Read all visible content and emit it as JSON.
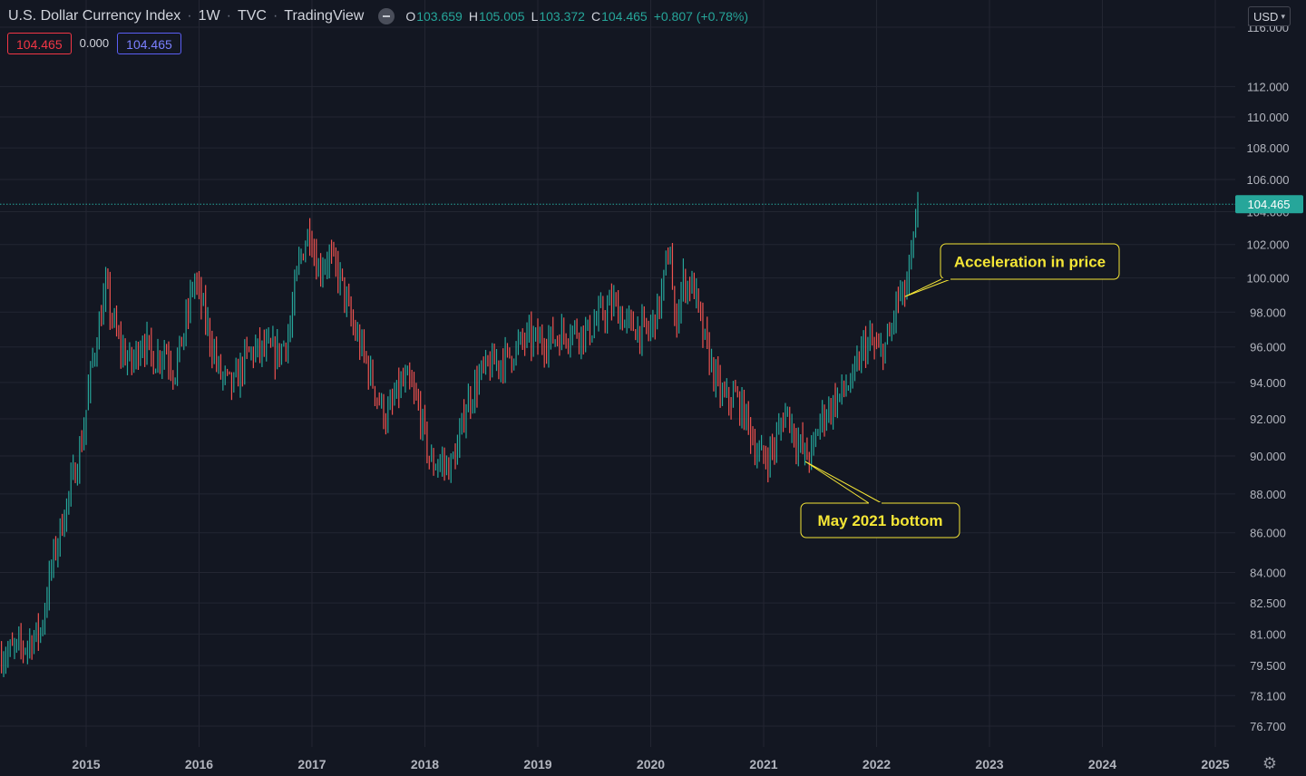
{
  "header": {
    "symbol_title": "U.S. Dollar Currency Index",
    "interval": "1W",
    "exchange": "TVC",
    "source": "TradingView",
    "ohlc": {
      "o_label": "O",
      "o_value": "103.659",
      "h_label": "H",
      "h_value": "105.005",
      "l_label": "L",
      "l_value": "103.372",
      "c_label": "C",
      "c_value": "104.465",
      "change": "+0.807 (+0.78%)"
    }
  },
  "indicator_boxes": {
    "bid": "104.465",
    "spread": "0.000",
    "ask": "104.465"
  },
  "currency_button": {
    "label": "USD"
  },
  "colors": {
    "background": "#131722",
    "up": "#26a69a",
    "down": "#ef5350",
    "grid": "#232632",
    "annotation_fill": "#131722",
    "annotation_border": "#f5e636",
    "annotation_text": "#f5e636",
    "last_price_line": "#26a69a"
  },
  "chart_data": {
    "type": "candlestick",
    "title": "U.S. Dollar Currency Index",
    "interval": "1W",
    "y_scale": "log",
    "ylim": [
      75.8,
      117.0
    ],
    "xlim": [
      2014.25,
      2025.4
    ],
    "grid": true,
    "y_ticks": [
      "76.700",
      "78.100",
      "79.500",
      "81.000",
      "82.500",
      "84.000",
      "86.000",
      "88.000",
      "90.000",
      "92.000",
      "94.000",
      "96.000",
      "98.000",
      "100.000",
      "102.000",
      "104.000",
      "106.000",
      "108.000",
      "110.000",
      "112.000",
      "116.000"
    ],
    "x_ticks": [
      "2015",
      "2016",
      "2017",
      "2018",
      "2019",
      "2020",
      "2021",
      "2022",
      "2023",
      "2024",
      "2025"
    ],
    "last_price": 104.465,
    "last_price_label": "104.465",
    "series_path": [
      [
        2014.25,
        80.0
      ],
      [
        2014.45,
        80.4
      ],
      [
        2014.6,
        81.2
      ],
      [
        2014.7,
        84.5
      ],
      [
        2014.85,
        88.0
      ],
      [
        2014.97,
        91.0
      ],
      [
        2015.05,
        95.0
      ],
      [
        2015.18,
        99.5
      ],
      [
        2015.22,
        97.8
      ],
      [
        2015.3,
        96.0
      ],
      [
        2015.4,
        95.0
      ],
      [
        2015.5,
        96.5
      ],
      [
        2015.6,
        95.2
      ],
      [
        2015.7,
        96.0
      ],
      [
        2015.78,
        94.5
      ],
      [
        2015.9,
        97.8
      ],
      [
        2015.95,
        100.0
      ],
      [
        2016.0,
        99.0
      ],
      [
        2016.08,
        97.0
      ],
      [
        2016.18,
        94.5
      ],
      [
        2016.3,
        93.7
      ],
      [
        2016.42,
        95.5
      ],
      [
        2016.5,
        95.8
      ],
      [
        2016.58,
        95.8
      ],
      [
        2016.7,
        95.6
      ],
      [
        2016.8,
        96.8
      ],
      [
        2016.88,
        100.8
      ],
      [
        2016.98,
        103.0
      ],
      [
        2017.05,
        100.5
      ],
      [
        2017.15,
        101.3
      ],
      [
        2017.25,
        100.0
      ],
      [
        2017.35,
        97.3
      ],
      [
        2017.45,
        95.7
      ],
      [
        2017.58,
        93.2
      ],
      [
        2017.66,
        92.0
      ],
      [
        2017.78,
        93.8
      ],
      [
        2017.85,
        94.0
      ],
      [
        2017.95,
        92.5
      ],
      [
        2018.05,
        89.5
      ],
      [
        2018.12,
        89.7
      ],
      [
        2018.22,
        89.4
      ],
      [
        2018.3,
        90.5
      ],
      [
        2018.35,
        92.5
      ],
      [
        2018.5,
        94.5
      ],
      [
        2018.6,
        95.0
      ],
      [
        2018.75,
        95.5
      ],
      [
        2018.9,
        96.5
      ],
      [
        2019.0,
        96.3
      ],
      [
        2019.15,
        96.5
      ],
      [
        2019.3,
        97.0
      ],
      [
        2019.45,
        96.8
      ],
      [
        2019.55,
        97.8
      ],
      [
        2019.68,
        98.5
      ],
      [
        2019.78,
        97.3
      ],
      [
        2019.9,
        97.0
      ],
      [
        2019.98,
        96.8
      ],
      [
        2020.08,
        98.5
      ],
      [
        2020.17,
        102.0
      ],
      [
        2020.21,
        97.0
      ],
      [
        2020.28,
        99.8
      ],
      [
        2020.38,
        99.5
      ],
      [
        2020.45,
        97.0
      ],
      [
        2020.58,
        94.0
      ],
      [
        2020.65,
        93.0
      ],
      [
        2020.75,
        93.2
      ],
      [
        2020.85,
        92.0
      ],
      [
        2020.95,
        90.0
      ],
      [
        2021.02,
        89.9
      ],
      [
        2021.1,
        90.6
      ],
      [
        2021.2,
        92.6
      ],
      [
        2021.28,
        91.0
      ],
      [
        2021.38,
        89.9
      ],
      [
        2021.45,
        90.5
      ],
      [
        2021.5,
        92.0
      ],
      [
        2021.6,
        92.7
      ],
      [
        2021.7,
        93.5
      ],
      [
        2021.8,
        94.2
      ],
      [
        2021.88,
        96.0
      ],
      [
        2021.95,
        96.2
      ],
      [
        2022.02,
        95.6
      ],
      [
        2022.12,
        96.5
      ],
      [
        2022.18,
        98.8
      ],
      [
        2022.25,
        99.0
      ],
      [
        2022.3,
        100.8
      ],
      [
        2022.37,
        104.0
      ]
    ],
    "annotations": [
      {
        "text": "Acceleration in price",
        "point": [
          2022.25,
          98.9
        ]
      },
      {
        "text": "May 2021 bottom",
        "point": [
          2021.37,
          89.7
        ]
      }
    ]
  }
}
